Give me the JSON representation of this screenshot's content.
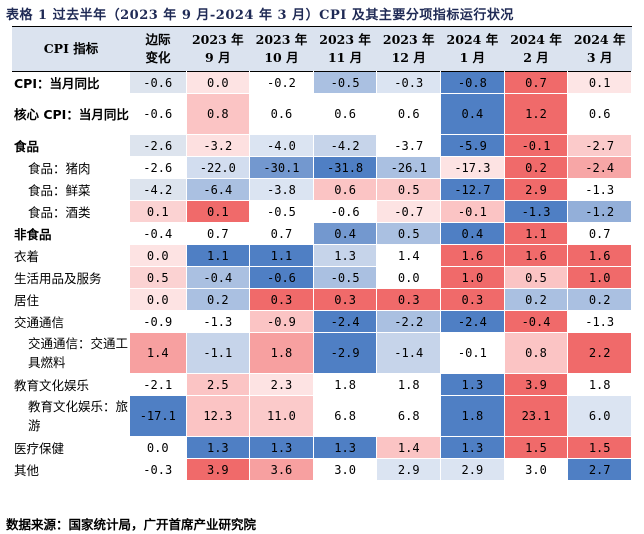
{
  "title": "表格 1 过去半年（2023 年 9 月-2024 年 3 月）CPI 及其主要分项指标运行状况",
  "source": "数据来源：国家统计局，广开首席产业研究院",
  "header": {
    "label": "CPI 指标",
    "columns": [
      [
        "边际",
        "变化"
      ],
      [
        "2023 年",
        "9 月"
      ],
      [
        "2023 年",
        "10 月"
      ],
      [
        "2023 年",
        "11 月"
      ],
      [
        "2023 年",
        "12 月"
      ],
      [
        "2024 年",
        "1 月"
      ],
      [
        "2024 年",
        "2 月"
      ],
      [
        "2024 年",
        "3 月"
      ]
    ]
  },
  "rows": [
    {
      "label": "CPI：当月同比",
      "style": "bold",
      "values": [
        "-0.6",
        "0.0",
        "-0.2",
        "-0.5",
        "-0.3",
        "-0.8",
        "0.7",
        "0.1"
      ],
      "colors": [
        "#dde4ee",
        "#fde3e3",
        "#ffffff",
        "#aac0e1",
        "#dbe4f2",
        "#4f7fc4",
        "#f06a6a",
        "#fde5e5"
      ]
    },
    {
      "label": "核心 CPI：当月同比",
      "style": "bold-tall",
      "values": [
        "-0.6",
        "0.8",
        "0.6",
        "0.6",
        "0.6",
        "0.4",
        "1.2",
        "0.6"
      ],
      "colors": [
        "#ffffff",
        "#fbc4c4",
        "#ffffff",
        "#ffffff",
        "#ffffff",
        "#4f7fc4",
        "#f06a6a",
        "#ffffff"
      ]
    },
    {
      "label": "食品",
      "style": "bold",
      "values": [
        "-2.6",
        "-3.2",
        "-4.0",
        "-4.2",
        "-3.7",
        "-5.9",
        "-0.1",
        "-2.7"
      ],
      "colors": [
        "#dde4ee",
        "#fde0e0",
        "#dbe4f2",
        "#c6d4ea",
        "#ffffff",
        "#4f7fc4",
        "#f06a6a",
        "#fbcaca"
      ]
    },
    {
      "label": "食品：猪肉",
      "style": "indent",
      "values": [
        "-2.6",
        "-22.0",
        "-30.1",
        "-31.8",
        "-26.1",
        "-17.3",
        "0.2",
        "-2.4"
      ],
      "colors": [
        "#ffffff",
        "#d2ddef",
        "#7398cf",
        "#4f7fc4",
        "#aac0e1",
        "#fde3e3",
        "#f06a6a",
        "#f7a6a6"
      ]
    },
    {
      "label": "食品：鲜菜",
      "style": "indent",
      "values": [
        "-4.2",
        "-6.4",
        "-3.8",
        "0.6",
        "0.5",
        "-12.7",
        "2.9",
        "-1.3"
      ],
      "colors": [
        "#dde4ee",
        "#aac0e1",
        "#dbe4f2",
        "#fbc4c4",
        "#fbc9c9",
        "#4f7fc4",
        "#f06a6a",
        "#ffffff"
      ]
    },
    {
      "label": "食品：酒类",
      "style": "indent",
      "values": [
        "0.1",
        "0.1",
        "-0.5",
        "-0.6",
        "-0.7",
        "-0.1",
        "-1.3",
        "-1.2"
      ],
      "colors": [
        "#fbd2d2",
        "#f06a6a",
        "#ffffff",
        "#ffffff",
        "#fde3e3",
        "#fbc4c4",
        "#4f7fc4",
        "#93afd9"
      ]
    },
    {
      "label": "非食品",
      "style": "bold",
      "values": [
        "-0.4",
        "0.7",
        "0.7",
        "0.4",
        "0.5",
        "0.4",
        "1.1",
        "0.7"
      ],
      "colors": [
        "#ffffff",
        "#ffffff",
        "#ffffff",
        "#7398cf",
        "#aac0e1",
        "#4f7fc4",
        "#f06a6a",
        "#ffffff"
      ]
    },
    {
      "label": "衣着",
      "style": "plain",
      "values": [
        "0.0",
        "1.1",
        "1.1",
        "1.3",
        "1.4",
        "1.6",
        "1.6",
        "1.6"
      ],
      "colors": [
        "#fde3e3",
        "#4f7fc4",
        "#4f7fc4",
        "#c6d4ea",
        "#ffffff",
        "#f06a6a",
        "#f06a6a",
        "#f06a6a"
      ]
    },
    {
      "label": "生活用品及服务",
      "style": "plain",
      "values": [
        "0.5",
        "-0.4",
        "-0.6",
        "-0.5",
        "0.0",
        "1.0",
        "0.5",
        "1.0"
      ],
      "colors": [
        "#fbd2d2",
        "#aac0e1",
        "#4f7fc4",
        "#aac0e1",
        "#ffffff",
        "#f06a6a",
        "#fbc4c4",
        "#f06a6a"
      ]
    },
    {
      "label": "居住",
      "style": "plain",
      "values": [
        "0.0",
        "0.2",
        "0.3",
        "0.3",
        "0.3",
        "0.3",
        "0.2",
        "0.2"
      ],
      "colors": [
        "#fde3e3",
        "#aac0e1",
        "#f06a6a",
        "#f06a6a",
        "#f06a6a",
        "#f06a6a",
        "#aac0e1",
        "#aac0e1"
      ]
    },
    {
      "label": "交通通信",
      "style": "plain",
      "values": [
        "-0.9",
        "-1.3",
        "-0.9",
        "-2.4",
        "-2.2",
        "-2.4",
        "-0.4",
        "-1.3"
      ],
      "colors": [
        "#ffffff",
        "#ffffff",
        "#fbc4c4",
        "#4f7fc4",
        "#aac0e1",
        "#4f7fc4",
        "#f06a6a",
        "#ffffff"
      ]
    },
    {
      "label": "交通通信：交通工具燃料",
      "style": "indent-tall",
      "values": [
        "1.4",
        "-1.1",
        "1.8",
        "-2.9",
        "-1.4",
        "-0.1",
        "0.8",
        "2.2"
      ],
      "colors": [
        "#f7a0a0",
        "#c6d4ea",
        "#f7a0a0",
        "#4f7fc4",
        "#c6d4ea",
        "#ffffff",
        "#fbc4c4",
        "#f06a6a"
      ]
    },
    {
      "label": "教育文化娱乐",
      "style": "plain",
      "values": [
        "-2.1",
        "2.5",
        "2.3",
        "1.8",
        "1.8",
        "1.3",
        "3.9",
        "1.8"
      ],
      "colors": [
        "#ffffff",
        "#fbc4c4",
        "#fde3e3",
        "#ffffff",
        "#ffffff",
        "#4f7fc4",
        "#f06a6a",
        "#ffffff"
      ]
    },
    {
      "label": "教育文化娱乐：旅游",
      "style": "indent-tall",
      "values": [
        "-17.1",
        "12.3",
        "11.0",
        "6.8",
        "6.8",
        "1.8",
        "23.1",
        "6.0"
      ],
      "colors": [
        "#4f7fc4",
        "#fbc4c4",
        "#fbcaca",
        "#ffffff",
        "#ffffff",
        "#4f7fc4",
        "#f06a6a",
        "#dbe4f2"
      ]
    },
    {
      "label": "医疗保健",
      "style": "plain",
      "values": [
        "0.0",
        "1.3",
        "1.3",
        "1.3",
        "1.4",
        "1.3",
        "1.5",
        "1.5"
      ],
      "colors": [
        "#ffffff",
        "#4f7fc4",
        "#4f7fc4",
        "#4f7fc4",
        "#fbc4c4",
        "#4f7fc4",
        "#f06a6a",
        "#f06a6a"
      ]
    },
    {
      "label": "其他",
      "style": "plain",
      "values": [
        "-0.3",
        "3.9",
        "3.6",
        "3.0",
        "2.9",
        "2.9",
        "3.0",
        "2.7"
      ],
      "colors": [
        "#ffffff",
        "#f06a6a",
        "#f7a0a0",
        "#ffffff",
        "#dbe4f2",
        "#dbe4f2",
        "#ffffff",
        "#4f7fc4"
      ]
    }
  ]
}
